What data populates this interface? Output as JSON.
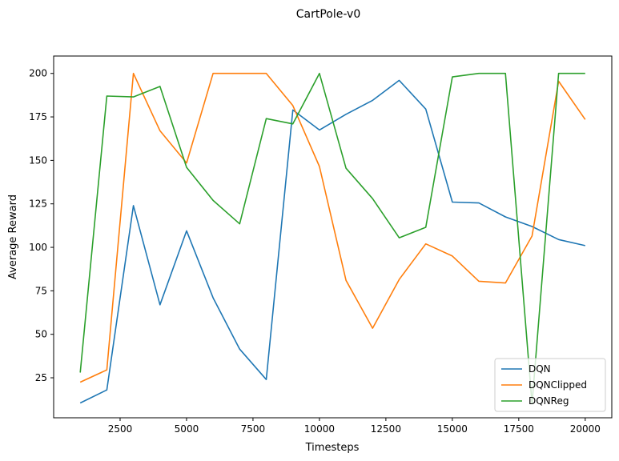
{
  "chart_data": {
    "type": "line",
    "title": "CartPole-v0",
    "xlabel": "Timesteps",
    "ylabel": "Average Reward",
    "xlim": [
      0,
      21000
    ],
    "ylim": [
      2,
      210
    ],
    "xticks": [
      2500,
      5000,
      7500,
      10000,
      12500,
      15000,
      17500,
      20000
    ],
    "xtick_labels": [
      "2500",
      "5000",
      "7500",
      "10000",
      "12500",
      "15000",
      "17500",
      "20000"
    ],
    "yticks": [
      25,
      50,
      75,
      100,
      125,
      150,
      175,
      200
    ],
    "ytick_labels": [
      "25",
      "50",
      "75",
      "100",
      "125",
      "150",
      "175",
      "200"
    ],
    "grid": false,
    "legend_position": "lower-right",
    "x": [
      1000,
      2000,
      3000,
      4000,
      5000,
      6000,
      7000,
      8000,
      9000,
      10000,
      11000,
      12000,
      13000,
      14000,
      15000,
      16000,
      17000,
      18000,
      19000,
      20000
    ],
    "series": [
      {
        "name": "DQN",
        "color": "#1f77b4",
        "values": [
          10.5,
          18,
          124,
          67,
          109.5,
          71,
          41.5,
          24,
          179,
          167.5,
          176.5,
          184.5,
          196,
          179.5,
          126,
          125.5,
          117.5,
          112,
          104.5,
          101
        ]
      },
      {
        "name": "DQNClipped",
        "color": "#ff7f0e",
        "values": [
          22.5,
          29.5,
          200,
          167,
          148.5,
          200,
          200,
          200,
          181.5,
          146.5,
          81,
          53.5,
          81.5,
          102,
          95,
          80.5,
          79.5,
          106.5,
          195.5,
          173.5
        ]
      },
      {
        "name": "DQNReg",
        "color": "#2ca02c",
        "values": [
          28,
          187,
          186.5,
          192.5,
          146,
          127,
          113.5,
          174,
          171,
          200,
          145.5,
          128,
          105.5,
          111.5,
          198,
          200,
          200,
          10,
          200,
          200
        ]
      }
    ]
  }
}
